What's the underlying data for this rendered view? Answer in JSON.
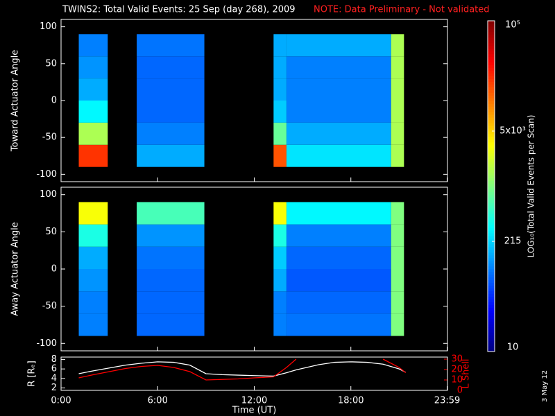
{
  "header": {
    "title": "TWINS2: Total Valid Events: 25 Sep (day 268), 2009",
    "note": "NOTE: Data Preliminary - Not validated"
  },
  "colorbar": {
    "label": "LOG₁₀(Total Valid Events per Scan)",
    "lim": [
      10,
      100000
    ],
    "log": true,
    "ticks": [
      10,
      215,
      {
        "value": 4642,
        "label": "5x10³"
      },
      {
        "value": 100000,
        "label": "10⁵"
      }
    ]
  },
  "date_stamp": "3 May 12",
  "chart_data": [
    {
      "type": "heatmap",
      "ylabel": "Toward Actuator Angle",
      "xlim": [
        0,
        24
      ],
      "ylim": [
        -110,
        110
      ],
      "yticks": [
        -100,
        -50,
        0,
        50,
        100
      ],
      "xticks": [
        {
          "value": 0,
          "label": "0:00"
        },
        {
          "value": 6,
          "label": "6:00"
        },
        {
          "value": 12,
          "label": "12:00"
        },
        {
          "value": 18,
          "label": "18:00"
        },
        {
          "value": 23.98,
          "label": "23:59"
        }
      ],
      "bin_edges": [
        -90,
        -60,
        -30,
        0,
        30,
        60,
        90
      ],
      "segments": [
        {
          "start": 1.1,
          "end": 2.9,
          "values": [
            20000,
            1500,
            300,
            150,
            120,
            100
          ]
        },
        {
          "start": 4.7,
          "end": 8.9,
          "values": [
            150,
            100,
            80,
            80,
            80,
            90
          ]
        },
        {
          "start": 13.2,
          "end": 14.0,
          "values": [
            15000,
            800,
            200,
            150,
            150,
            150
          ]
        },
        {
          "start": 14.0,
          "end": 20.5,
          "values": [
            250,
            150,
            100,
            100,
            100,
            150
          ]
        },
        {
          "start": 20.5,
          "end": 21.3,
          "values": [
            1500,
            1500,
            1500,
            1500,
            1500,
            1500
          ]
        }
      ]
    },
    {
      "type": "heatmap",
      "ylabel": "Away Actuator Angle",
      "xlim": [
        0,
        24
      ],
      "ylim": [
        -110,
        110
      ],
      "yticks": [
        -100,
        -50,
        0,
        50,
        100
      ],
      "xticks": [
        {
          "value": 0,
          "label": "0:00"
        },
        {
          "value": 6,
          "label": "6:00"
        },
        {
          "value": 12,
          "label": "12:00"
        },
        {
          "value": 18,
          "label": "18:00"
        },
        {
          "value": 23.98,
          "label": "23:59"
        }
      ],
      "bin_edges": [
        -90,
        -60,
        -30,
        0,
        30,
        60,
        90
      ],
      "segments": [
        {
          "start": 1.1,
          "end": 2.9,
          "values": [
            100,
            100,
            120,
            150,
            400,
            3000
          ]
        },
        {
          "start": 4.7,
          "end": 8.9,
          "values": [
            80,
            80,
            80,
            90,
            120,
            600
          ]
        },
        {
          "start": 13.2,
          "end": 14.0,
          "values": [
            100,
            100,
            150,
            200,
            400,
            3000
          ]
        },
        {
          "start": 14.0,
          "end": 20.5,
          "values": [
            90,
            80,
            70,
            80,
            100,
            300
          ]
        },
        {
          "start": 20.5,
          "end": 21.3,
          "values": [
            1000,
            1000,
            1000,
            1000,
            1000,
            1000
          ]
        }
      ]
    },
    {
      "type": "line",
      "ylabel": "R [Rₑ]",
      "y2label": "L Shell",
      "xlabel": "Time (UT)",
      "xlim": [
        0,
        24
      ],
      "ylim": [
        1.5,
        8.5
      ],
      "yticks": [
        2,
        4,
        6,
        8
      ],
      "y2lim": [
        0,
        32
      ],
      "y2ticks": [
        0,
        10,
        20,
        30
      ],
      "xticks": [
        {
          "value": 0,
          "label": "0:00"
        },
        {
          "value": 6,
          "label": "6:00"
        },
        {
          "value": 12,
          "label": "12:00"
        },
        {
          "value": 18,
          "label": "18:00"
        },
        {
          "value": 23.98,
          "label": "23:59"
        }
      ],
      "x": [
        1.1,
        2,
        3,
        4,
        5,
        6,
        7,
        8,
        9,
        10,
        11,
        12,
        13.2,
        14,
        14.6,
        16,
        17,
        18,
        19,
        20,
        21,
        21.4
      ],
      "series": [
        {
          "name": "R",
          "color": "#ffffff",
          "values": [
            5.0,
            5.6,
            6.2,
            6.8,
            7.2,
            7.5,
            7.4,
            6.8,
            5.0,
            4.8,
            4.7,
            4.6,
            4.5,
            5.2,
            5.8,
            6.9,
            7.4,
            7.5,
            7.4,
            7.0,
            6.0,
            5.3
          ]
        },
        {
          "name": "L Shell",
          "color": "#ff0000",
          "axis": "y2",
          "values": [
            12,
            15,
            18,
            21,
            23,
            24,
            22,
            18,
            10,
            10.5,
            11,
            12,
            13,
            22,
            30,
            null,
            null,
            null,
            null,
            30,
            22,
            17
          ]
        }
      ]
    }
  ]
}
